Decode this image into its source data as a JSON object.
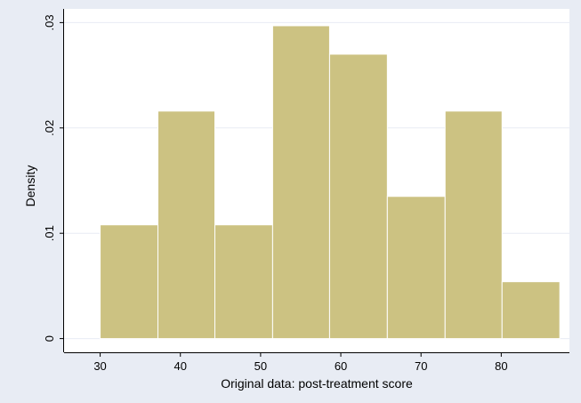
{
  "chart_data": {
    "type": "bar",
    "subtype": "histogram",
    "xlabel": "Original data: post-treatment score",
    "ylabel": "Density",
    "xlim": [
      25.5,
      88.5
    ],
    "ylim": [
      -0.0013,
      0.0313
    ],
    "x_ticks": [
      30,
      40,
      50,
      60,
      70,
      80
    ],
    "x_tick_labels": [
      "30",
      "40",
      "50",
      "60",
      "70",
      "80"
    ],
    "y_ticks": [
      0,
      0.01,
      0.02,
      0.03
    ],
    "y_tick_labels": [
      "0",
      ".01",
      ".02",
      ".03"
    ],
    "bins": [
      {
        "x0": 30.0,
        "x1": 37.2,
        "density": 0.0108
      },
      {
        "x0": 37.2,
        "x1": 44.3,
        "density": 0.0216
      },
      {
        "x0": 44.3,
        "x1": 51.5,
        "density": 0.0108
      },
      {
        "x0": 51.5,
        "x1": 58.6,
        "density": 0.0297
      },
      {
        "x0": 58.6,
        "x1": 65.8,
        "density": 0.027
      },
      {
        "x0": 65.8,
        "x1": 73.0,
        "density": 0.0135
      },
      {
        "x0": 73.0,
        "x1": 80.1,
        "density": 0.0216
      },
      {
        "x0": 80.1,
        "x1": 87.3,
        "density": 0.0054
      }
    ],
    "grid": true,
    "colors": {
      "background": "#e8ecf4",
      "plot_area": "#ffffff",
      "bar_fill": "#ccc282",
      "bar_stroke": "#ffffff",
      "grid": "#e8ecf4"
    }
  }
}
